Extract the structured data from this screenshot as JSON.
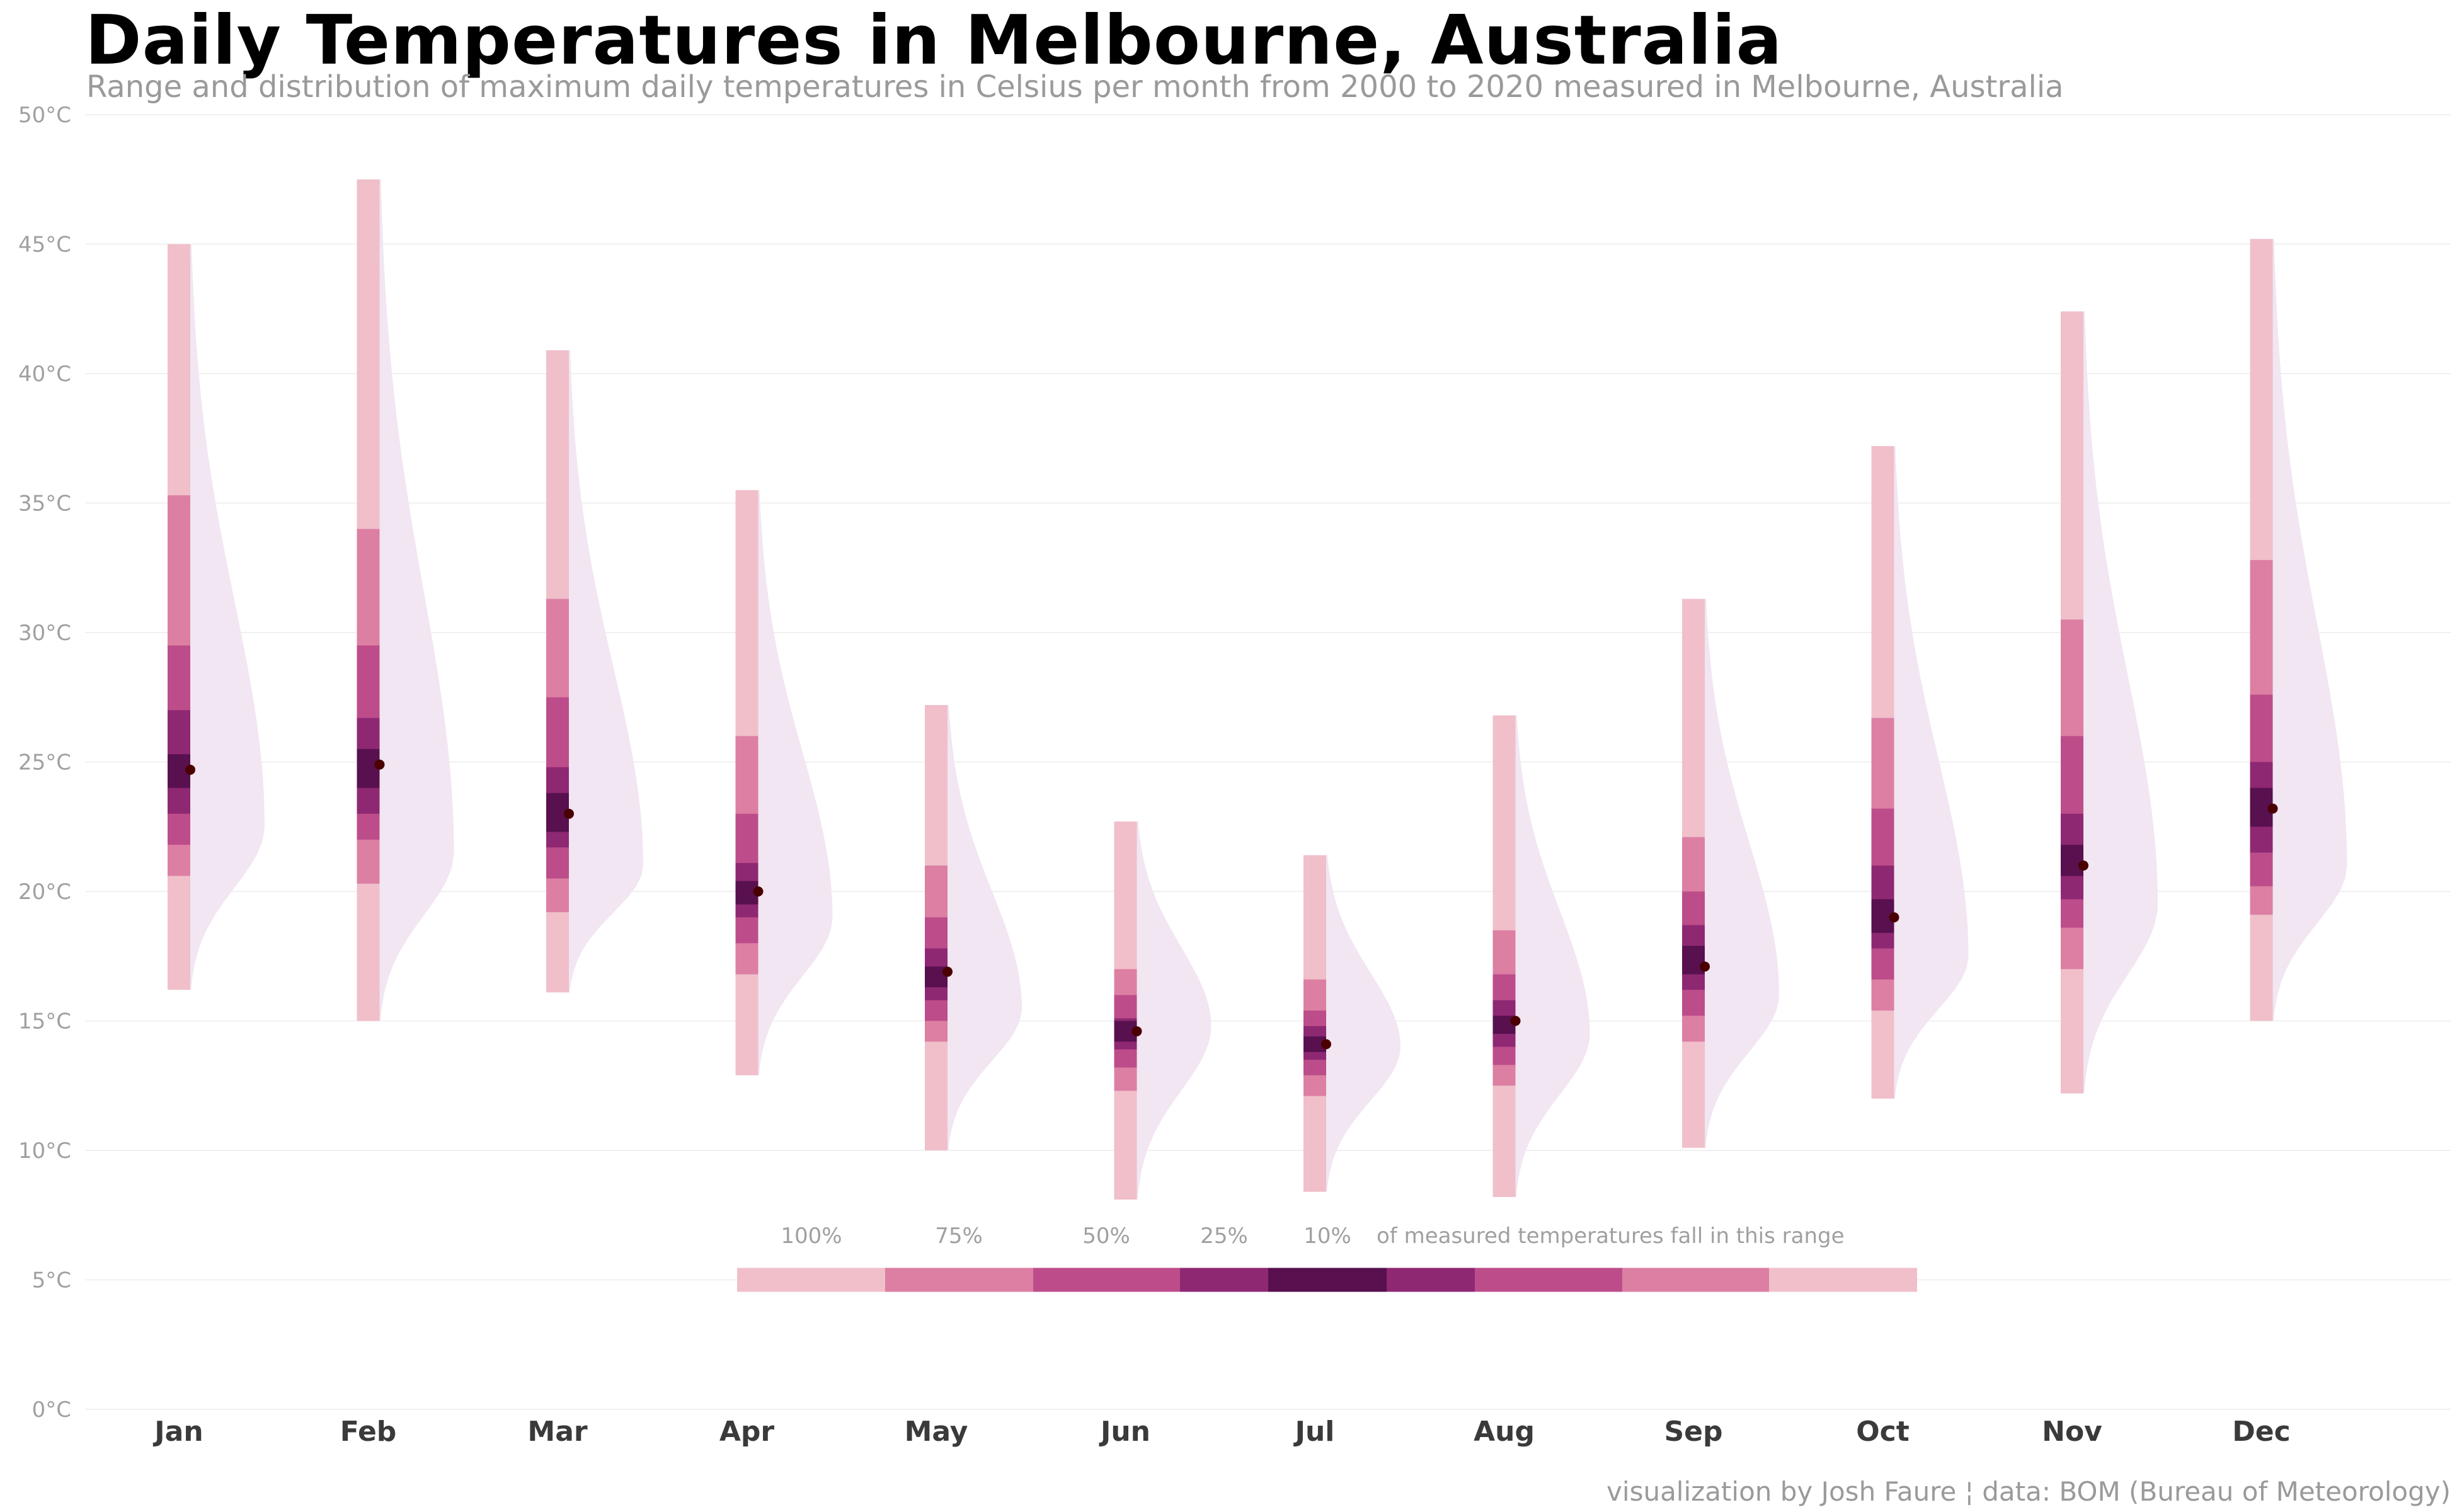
{
  "title": "Daily Temperatures in Melbourne, Australia",
  "subtitle": "Range and distribution of maximum daily temperatures in Celsius per month from 2000 to 2020 measured in Melbourne, Australia",
  "caption": "visualization by Josh Faure ¦ data: BOM (Bureau of Meteorology)",
  "colors": {
    "level_100": "#f0bfca",
    "level_75": "#dc7fa3",
    "level_50": "#bd4d8a",
    "level_25": "#8e2873",
    "level_10": "#58104e",
    "density_fill": "#f1e6f1",
    "median_point": "#4a0000",
    "grid": "#f0f0f0"
  },
  "legend": {
    "labels": [
      "100%",
      "75%",
      "50%",
      "25%",
      "10%"
    ],
    "text": "of measured temperatures fall in this range"
  },
  "chart_data": {
    "type": "interval",
    "title": "Daily Temperatures in Melbourne, Australia",
    "subtitle": "Range and distribution of maximum daily temperatures in Celsius per month from 2000 to 2020 measured in Melbourne, Australia",
    "ylim": [
      0,
      50
    ],
    "y_ticks": [
      "0°C",
      "5°C",
      "10°C",
      "15°C",
      "20°C",
      "25°C",
      "30°C",
      "35°C",
      "40°C",
      "45°C",
      "50°C"
    ],
    "grid": true,
    "categories": [
      "Jan",
      "Feb",
      "Mar",
      "Apr",
      "May",
      "Jun",
      "Jul",
      "Aug",
      "Sep",
      "Oct",
      "Nov",
      "Dec"
    ],
    "interval_levels": [
      "100%",
      "75%",
      "50%",
      "25%",
      "10%"
    ],
    "months": [
      {
        "month": "Jan",
        "median": 24.7,
        "min": 16.2,
        "max": 45.0,
        "i75": [
          20.6,
          35.3
        ],
        "i50": [
          21.8,
          29.5
        ],
        "i25": [
          23.0,
          27.0
        ],
        "i10": [
          24.0,
          25.3
        ],
        "density_peak": 22.5
      },
      {
        "month": "Feb",
        "median": 24.9,
        "min": 15.0,
        "max": 47.5,
        "i75": [
          20.3,
          34.0
        ],
        "i50": [
          22.0,
          29.5
        ],
        "i25": [
          23.0,
          26.7
        ],
        "i10": [
          24.0,
          25.5
        ],
        "density_peak": 21.5
      },
      {
        "month": "Mar",
        "median": 23.0,
        "min": 16.1,
        "max": 40.9,
        "i75": [
          19.2,
          31.3
        ],
        "i50": [
          20.5,
          27.5
        ],
        "i25": [
          21.7,
          24.8
        ],
        "i10": [
          22.3,
          23.8
        ],
        "density_peak": 21.0
      },
      {
        "month": "Apr",
        "median": 20.0,
        "min": 12.9,
        "max": 35.5,
        "i75": [
          16.8,
          26.0
        ],
        "i50": [
          18.0,
          23.0
        ],
        "i25": [
          19.0,
          21.1
        ],
        "i10": [
          19.5,
          20.4
        ],
        "density_peak": 19.0
      },
      {
        "month": "May",
        "median": 16.9,
        "min": 10.0,
        "max": 27.2,
        "i75": [
          14.2,
          21.0
        ],
        "i50": [
          15.0,
          19.0
        ],
        "i25": [
          15.8,
          17.8
        ],
        "i10": [
          16.3,
          17.1
        ],
        "density_peak": 15.5
      },
      {
        "month": "Jun",
        "median": 14.6,
        "min": 8.1,
        "max": 22.7,
        "i75": [
          12.3,
          17.0
        ],
        "i50": [
          13.2,
          16.0
        ],
        "i25": [
          13.9,
          15.1
        ],
        "i10": [
          14.2,
          15.0
        ],
        "density_peak": 14.8
      },
      {
        "month": "Jul",
        "median": 14.1,
        "min": 8.4,
        "max": 21.4,
        "i75": [
          12.1,
          16.6
        ],
        "i50": [
          12.9,
          15.4
        ],
        "i25": [
          13.5,
          14.8
        ],
        "i10": [
          13.8,
          14.4
        ],
        "density_peak": 14.0
      },
      {
        "month": "Aug",
        "median": 15.0,
        "min": 8.2,
        "max": 26.8,
        "i75": [
          12.5,
          18.5
        ],
        "i50": [
          13.3,
          16.8
        ],
        "i25": [
          14.0,
          15.8
        ],
        "i10": [
          14.5,
          15.2
        ],
        "density_peak": 14.5
      },
      {
        "month": "Sep",
        "median": 17.1,
        "min": 10.1,
        "max": 31.3,
        "i75": [
          14.2,
          22.1
        ],
        "i50": [
          15.2,
          20.0
        ],
        "i25": [
          16.2,
          18.7
        ],
        "i10": [
          16.8,
          17.9
        ],
        "density_peak": 16.0
      },
      {
        "month": "Oct",
        "median": 19.0,
        "min": 12.0,
        "max": 37.2,
        "i75": [
          15.4,
          26.7
        ],
        "i50": [
          16.6,
          23.2
        ],
        "i25": [
          17.8,
          21.0
        ],
        "i10": [
          18.4,
          19.7
        ],
        "density_peak": 17.5
      },
      {
        "month": "Nov",
        "median": 21.0,
        "min": 12.2,
        "max": 42.4,
        "i75": [
          17.0,
          30.5
        ],
        "i50": [
          18.6,
          26.0
        ],
        "i25": [
          19.7,
          23.0
        ],
        "i10": [
          20.6,
          21.8
        ],
        "density_peak": 19.5
      },
      {
        "month": "Dec",
        "median": 23.2,
        "min": 15.0,
        "max": 45.2,
        "i75": [
          19.1,
          32.8
        ],
        "i50": [
          20.2,
          27.6
        ],
        "i25": [
          21.5,
          25.0
        ],
        "i10": [
          22.5,
          24.0
        ],
        "density_peak": 21.0
      }
    ]
  }
}
